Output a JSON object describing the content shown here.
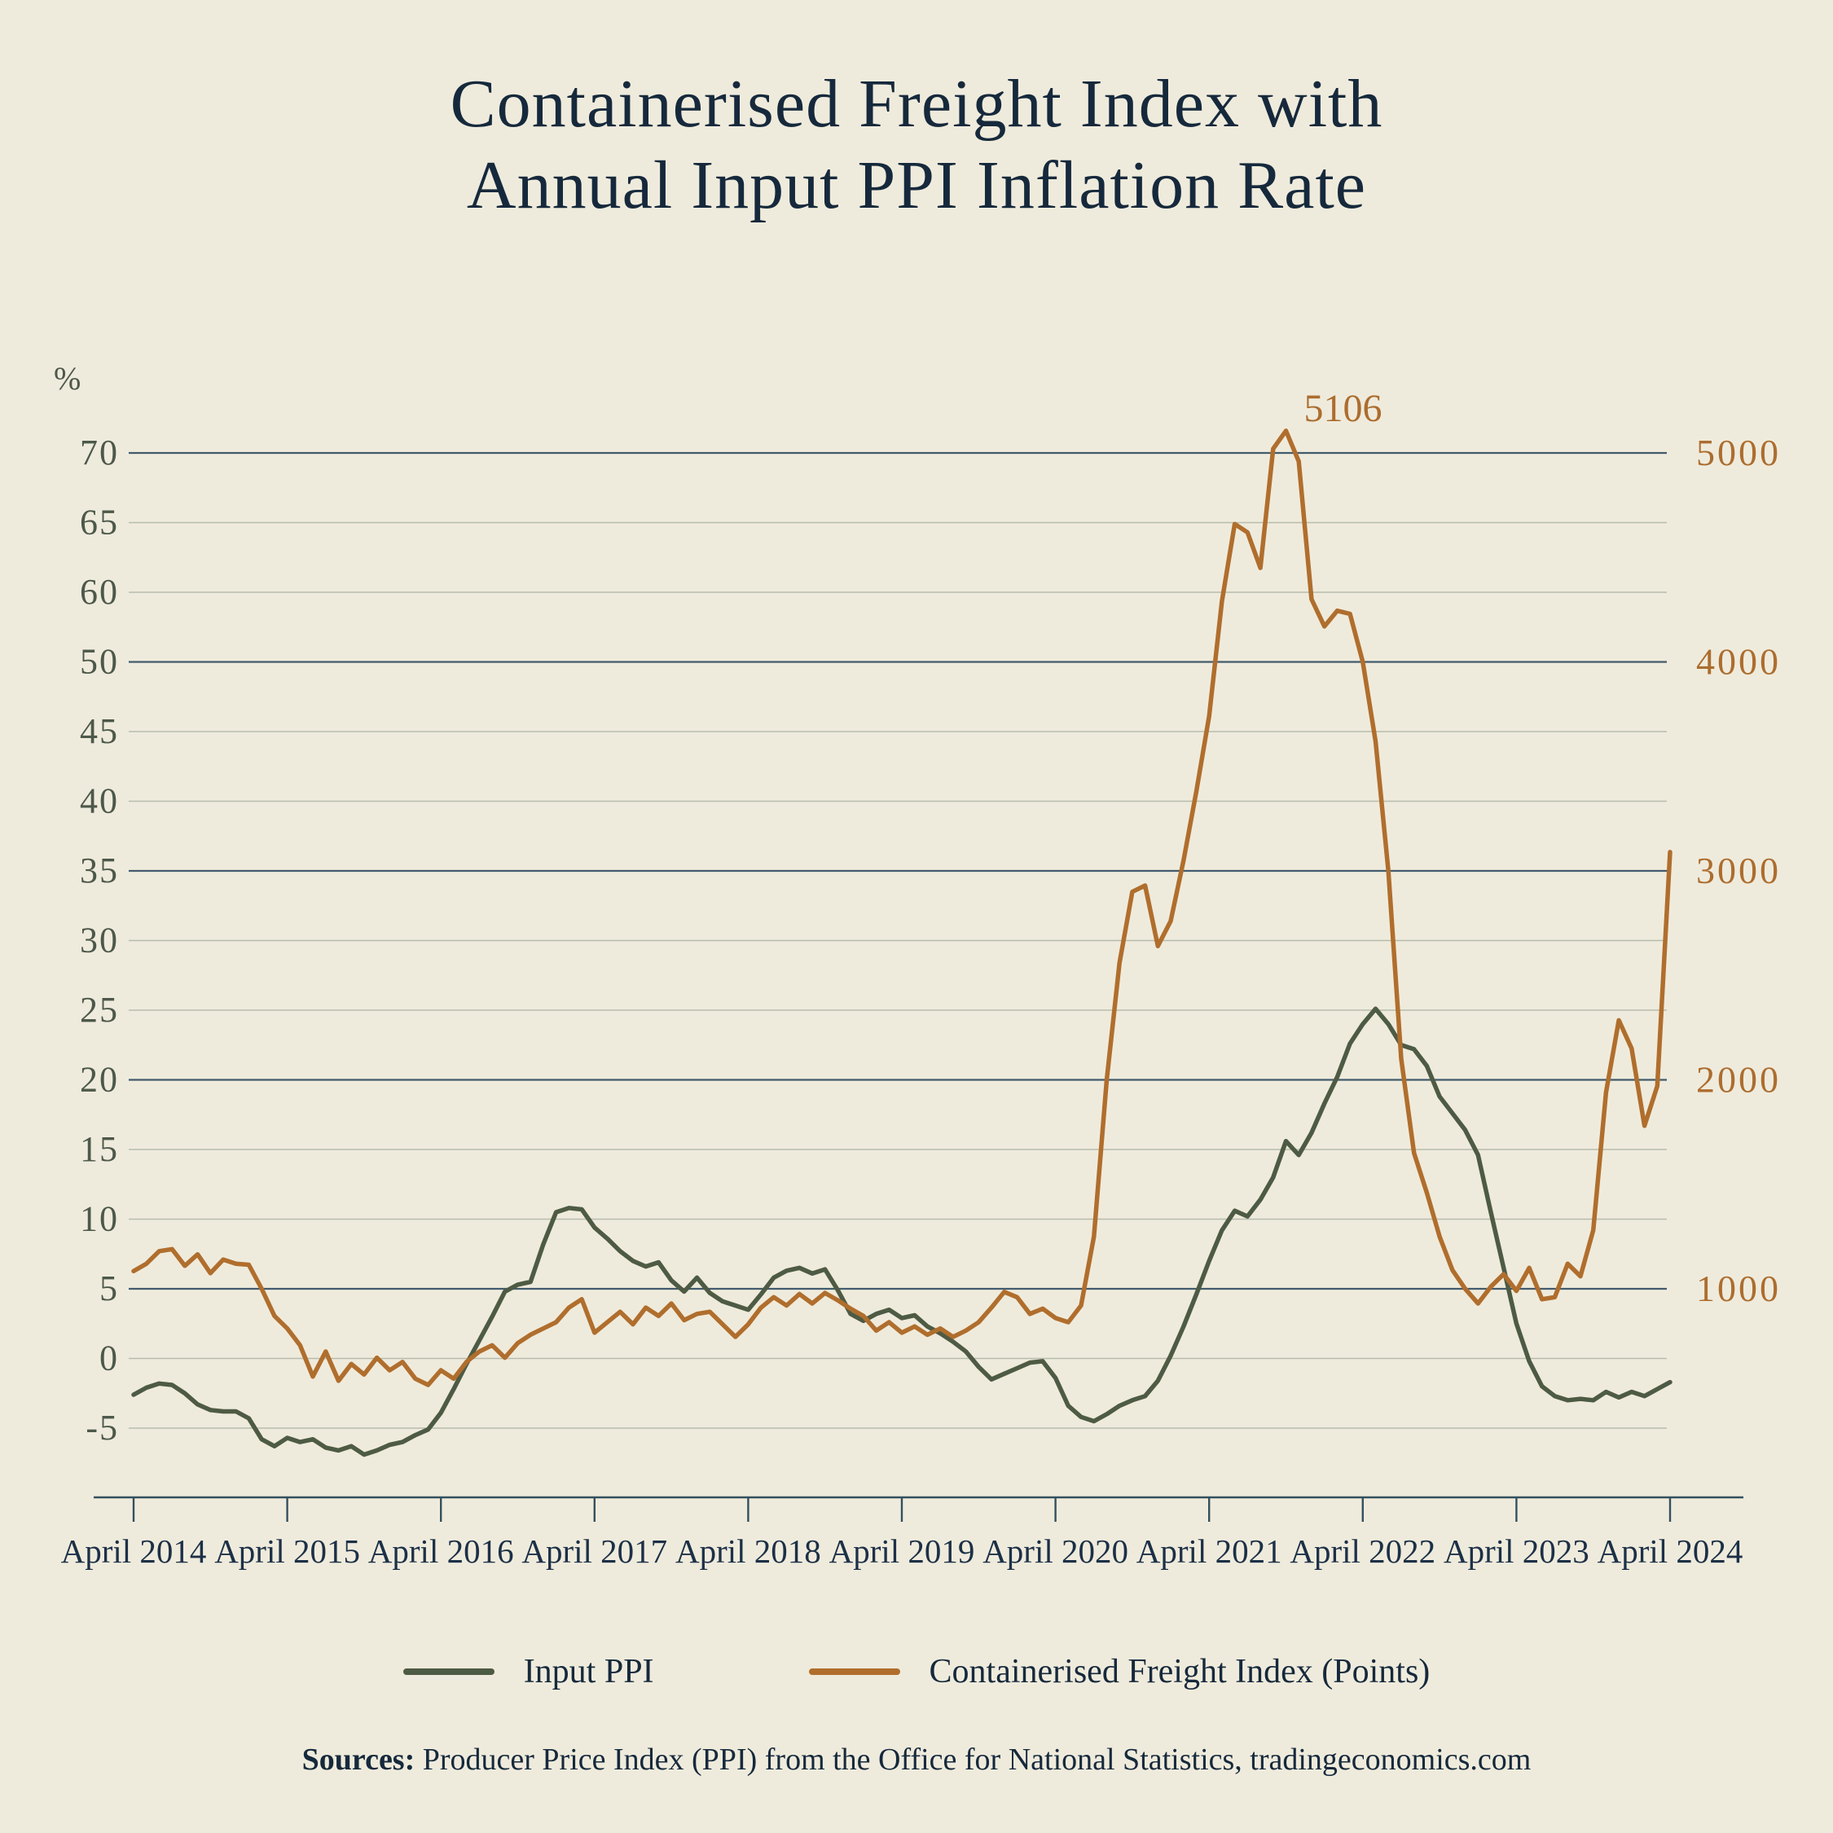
{
  "title": {
    "line1": "Containerised Freight Index with",
    "line2": "Annual Input PPI Inflation Rate"
  },
  "legend": {
    "items": [
      {
        "label": "Input PPI",
        "color": "#4E5B44"
      },
      {
        "label": "Containerised Freight Index (Points)",
        "color": "#B06E2D"
      }
    ]
  },
  "source_note": {
    "label": "Sources:",
    "text": " Producer Price Index (PPI) from the Office for National Statistics, tradingeconomics.com"
  },
  "colors": {
    "background": "#EFEBDC",
    "title_text": "#16293C",
    "left_axis_text": "#4C584A",
    "right_axis_text": "#AC6D2F",
    "x_axis_text": "#1C3047",
    "gridline_major": "#425B6D",
    "gridline_minor": "#B7BCAE",
    "axis_line": "#33505E",
    "ppi_line": "#4E5B44",
    "freight_line": "#B06E2D"
  },
  "chart_data": {
    "type": "line",
    "title": "Containerised Freight Index with Annual Input PPI Inflation Rate",
    "grid": "horizontal only, 15 lines; every 3rd line (right-axis labelled) is darker",
    "legend_position": "bottom center",
    "left_axis": {
      "unit_label": "%",
      "tick_labels_top_to_bottom": [
        "70",
        "65",
        "60",
        "50",
        "45",
        "40",
        "35",
        "30",
        "25",
        "20",
        "15",
        "10",
        "5",
        "0",
        "-5"
      ],
      "note": "labels step by 5 but sequence skips 55 between 60 and 50"
    },
    "right_axis": {
      "tick_labels_top_to_bottom": [
        "5000",
        "4000",
        "3000",
        "2000",
        "1000"
      ],
      "aligned_with_left_labels": [
        "70",
        "50",
        "35",
        "20",
        "5"
      ]
    },
    "x_axis": {
      "tick_labels": [
        "April 2014",
        "April 2015",
        "April 2016",
        "April 2017",
        "April 2018",
        "April 2019",
        "April 2020",
        "April 2021",
        "April 2022",
        "April 2023",
        "April 2024"
      ],
      "sampling": "monthly values from April 2014 to April 2024 inclusive (121 points)"
    },
    "annotation": {
      "text": "5106",
      "meaning": "peak of freight index",
      "x_month_index": 90,
      "value": 5106
    },
    "series": [
      {
        "name": "Input PPI",
        "axis": "left",
        "unit": "%",
        "color": "#4E5B44",
        "values": [
          -2.6,
          -2.1,
          -1.8,
          -1.9,
          -2.5,
          -3.3,
          -3.7,
          -3.8,
          -3.8,
          -4.3,
          -5.8,
          -6.3,
          -5.7,
          -6.0,
          -5.8,
          -6.4,
          -6.6,
          -6.3,
          -6.9,
          -6.6,
          -6.2,
          -6.0,
          -5.5,
          -5.1,
          -3.9,
          -2.2,
          -0.4,
          1.3,
          3.0,
          4.8,
          5.3,
          5.5,
          8.2,
          10.5,
          10.8,
          10.7,
          9.4,
          8.6,
          7.7,
          7.0,
          6.6,
          6.9,
          5.6,
          4.8,
          5.8,
          4.7,
          4.1,
          3.8,
          3.5,
          4.6,
          5.8,
          6.3,
          6.5,
          6.1,
          6.4,
          4.9,
          3.2,
          2.7,
          3.2,
          3.5,
          2.9,
          3.1,
          2.3,
          1.8,
          1.2,
          0.5,
          -0.6,
          -1.5,
          -1.1,
          -0.7,
          -0.3,
          -0.2,
          -1.4,
          -3.4,
          -4.2,
          -4.5,
          -4.0,
          -3.4,
          -3.0,
          -2.7,
          -1.6,
          0.2,
          2.3,
          4.6,
          7.0,
          9.2,
          10.6,
          10.2,
          11.4,
          13.0,
          15.6,
          14.6,
          16.2,
          18.3,
          20.2,
          22.6,
          24.0,
          25.1,
          24.0,
          22.5,
          22.2,
          21.0,
          18.8,
          17.6,
          16.4,
          14.6,
          10.5,
          6.5,
          2.5,
          -0.2,
          -2.0,
          -2.7,
          -3.0,
          -2.9,
          -3.0,
          -2.4,
          -2.8,
          -2.4,
          -2.7,
          -2.2,
          -1.7
        ]
      },
      {
        "name": "Containerised Freight Index (Points)",
        "axis": "right",
        "unit": "points",
        "color": "#B06E2D",
        "values": [
          1085,
          1120,
          1180,
          1190,
          1110,
          1165,
          1075,
          1140,
          1120,
          1115,
          1000,
          870,
          810,
          730,
          580,
          700,
          560,
          640,
          590,
          670,
          610,
          650,
          570,
          540,
          610,
          570,
          650,
          700,
          730,
          670,
          740,
          780,
          810,
          840,
          910,
          950,
          790,
          840,
          890,
          830,
          910,
          870,
          930,
          850,
          880,
          890,
          830,
          770,
          830,
          910,
          960,
          920,
          975,
          930,
          980,
          945,
          905,
          870,
          800,
          840,
          790,
          820,
          780,
          810,
          770,
          800,
          840,
          910,
          985,
          960,
          880,
          905,
          860,
          840,
          920,
          1250,
          2000,
          2560,
          2900,
          2930,
          2640,
          2760,
          3050,
          3380,
          3740,
          4290,
          4660,
          4620,
          4450,
          5020,
          5106,
          4960,
          4300,
          4170,
          4245,
          4230,
          4000,
          3620,
          3000,
          2100,
          1650,
          1460,
          1250,
          1090,
          1000,
          930,
          1010,
          1070,
          990,
          1100,
          950,
          960,
          1120,
          1060,
          1280,
          1940,
          2285,
          2150,
          1780,
          1970,
          3090
        ]
      }
    ]
  }
}
